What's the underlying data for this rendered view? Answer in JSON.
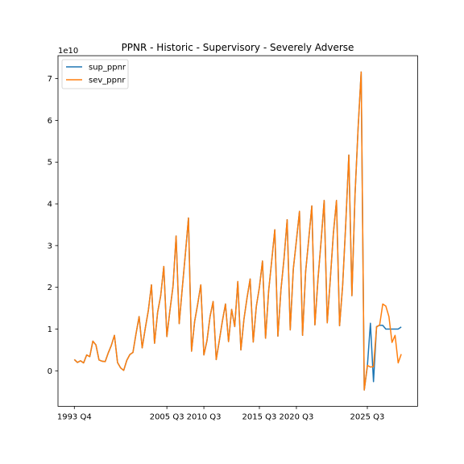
{
  "chart_data": {
    "type": "line",
    "title": "PPNR - Historic - Supervisory - Severely Adverse",
    "xlabel": "",
    "ylabel": "",
    "y_offset_label": "1e10",
    "ylim": [
      -8500000000.0,
      75500000000.0
    ],
    "xlim": [
      -3.35,
      79.35
    ],
    "x_ticks": [
      {
        "position": 0,
        "label": "1993 Q4"
      },
      {
        "position": 14,
        "label": "2005 Q3"
      },
      {
        "position": 25,
        "label": "2010 Q3"
      },
      {
        "position": 37,
        "label": "2015 Q3"
      },
      {
        "position": 49,
        "label": "2020 Q3"
      },
      {
        "position": 60,
        "label": "2025 Q3"
      }
    ],
    "y_ticks": [
      0,
      10000000000.0,
      20000000000.0,
      30000000000.0,
      40000000000.0,
      50000000000.0,
      60000000000.0,
      70000000000.0
    ],
    "y_tick_labels": [
      "0",
      "1",
      "2",
      "3",
      "4",
      "5",
      "6",
      "7"
    ],
    "grid": false,
    "legend_position": "top-left",
    "series": [
      {
        "name": "sup_ppnr",
        "color": "#1f77b4",
        "x": [
          0,
          1,
          2,
          3,
          4,
          5,
          6,
          7,
          8,
          9,
          10,
          11,
          12,
          13,
          14,
          15,
          16,
          17,
          18,
          19,
          20,
          21,
          22,
          23,
          24,
          25,
          26,
          27,
          28,
          29,
          30,
          31,
          32,
          33,
          34,
          35,
          36,
          37,
          38,
          39,
          40,
          41,
          42,
          43,
          44,
          45,
          46,
          47,
          48,
          49,
          50,
          51,
          52,
          53,
          54,
          55,
          56,
          57,
          58,
          59,
          60,
          61,
          62,
          63,
          64,
          65,
          66,
          67,
          68,
          69,
          70,
          71,
          72,
          73,
          74,
          75,
          76
        ],
        "values": [
          2700000000.0,
          2000000000.0,
          2400000000.0,
          1900000000.0,
          3800000000.0,
          3400000000.0,
          7100000000.0,
          6200000000.0,
          2600000000.0,
          2300000000.0,
          2200000000.0,
          4300000000.0,
          6100000000.0,
          8500000000.0,
          2000000000.0,
          700000000.0,
          100000000.0,
          2500000000.0,
          3900000000.0,
          4400000000.0,
          8900000000.0,
          13000000000.0,
          5500000000.0,
          10200000000.0,
          14500000000.0,
          20600000000.0,
          6600000000.0,
          14000000000.0,
          18000000000.0,
          25000000000.0,
          8200000000.0,
          14500000000.0,
          20300000000.0,
          32300000000.0,
          11300000000.0,
          19800000000.0,
          28000000000.0,
          36600000000.0,
          4700000000.0,
          11800000000.0,
          16000000000.0,
          20600000000.0,
          3800000000.0,
          7200000000.0,
          13000000000.0,
          16600000000.0,
          2700000000.0,
          7200000000.0,
          11900000000.0,
          16000000000.0,
          7000000000.0,
          14700000000.0,
          10600000000.0,
          21400000000.0,
          5000000000.0,
          12400000000.0,
          17500000000.0,
          22000000000.0,
          6900000000.0,
          15400000000.0,
          20000000000.0,
          26300000000.0,
          7800000000.0,
          19100000000.0,
          26400000000.0,
          33800000000.0,
          8300000000.0,
          19500000000.0,
          27000000000.0,
          36200000000.0,
          9800000000.0,
          24400000000.0,
          31200000000.0,
          38200000000.0,
          8500000000.0,
          23800000000.0,
          31500000000.0
        ],
        "x_tail": [
          77,
          78,
          79,
          80,
          81,
          82,
          83,
          84,
          85,
          86,
          87,
          88,
          89,
          90,
          91,
          92,
          93,
          94,
          95,
          96,
          97,
          98,
          99,
          100,
          101,
          102,
          103,
          104,
          105,
          106
        ],
        "values_tail": [
          39500000000.0,
          11000000000.0,
          22000000000.0,
          31000000000.0,
          40800000000.0,
          11500000000.0,
          22000000000.0,
          33000000000.0,
          40800000000.0,
          10800000000.0,
          20500000000.0,
          35200000000.0,
          51700000000.0,
          18000000000.0,
          42000000000.0,
          58000000000.0,
          71600000000.0,
          -4600000000.0,
          1000000000.0,
          11400000000.0,
          -2600000000.0,
          10600000000.0,
          10900000000.0,
          10900000000.0,
          10000000000.0,
          10000000000.0,
          10000000000.0,
          10000000000.0,
          10000000000.0,
          10500000000.0
        ]
      },
      {
        "name": "sev_ppnr",
        "color": "#ff7f0e",
        "values_end": [
          1300000000.0,
          900000000.0,
          1000000000.0,
          10500000000.0,
          11000000000.0,
          16000000000.0,
          15500000000.0,
          13000000000.0,
          6800000000.0,
          8500000000.0,
          1900000000.0,
          4000000000.0
        ]
      }
    ]
  }
}
